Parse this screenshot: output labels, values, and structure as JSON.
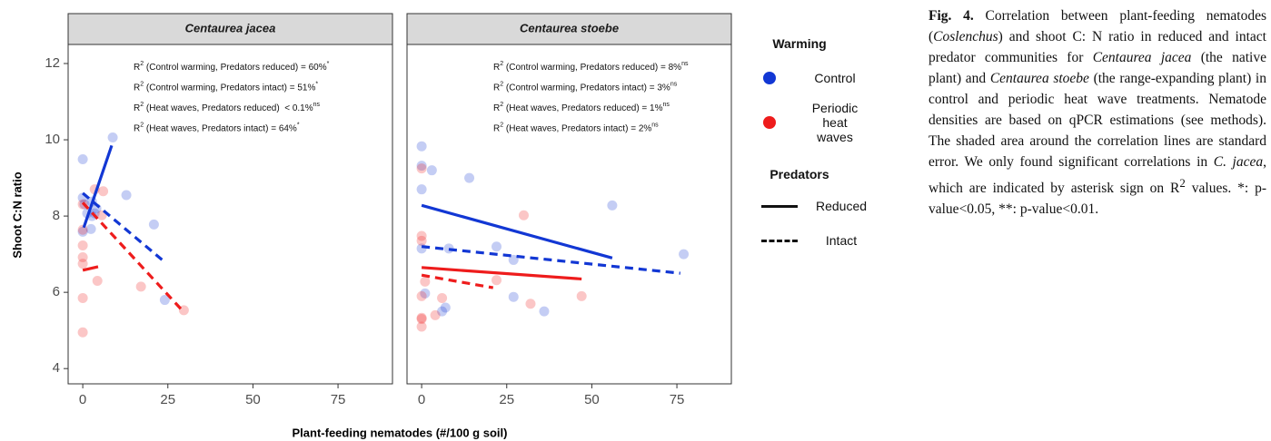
{
  "chart_data": {
    "type": "scatter",
    "ylabel": "Shoot C:N ratio",
    "xlabel": "Plant-feeding nematodes (#/100 g soil)",
    "xlim": [
      -4.3,
      91
    ],
    "xticks": [
      0,
      25,
      50,
      75
    ],
    "ylim": [
      3.6,
      12.5
    ],
    "yticks": [
      4,
      6,
      8,
      10,
      12
    ],
    "grid": false,
    "legend": {
      "title": "Warming",
      "items": [
        {
          "name": "Control",
          "color": "#1237d4"
        },
        {
          "name": "Periodic heat waves",
          "color": "#ee1c1c"
        }
      ]
    },
    "line_legend": {
      "title": "Predators",
      "items": [
        {
          "name": "Reduced",
          "dashed": false
        },
        {
          "name": "Intact",
          "dashed": true
        }
      ]
    },
    "facets": [
      {
        "title": "Centaurea jacea",
        "annotations": [
          {
            "base": "R",
            "sup": "2",
            "text": " (Control warming, Predators reduced) = 60%",
            "sig": "*"
          },
          {
            "base": "R",
            "sup": "2",
            "text": " (Control warming, Predators intact) = 51%",
            "sig": "*"
          },
          {
            "base": "R",
            "sup": "2",
            "text": " (Heat waves, Predators reduced)  < 0.1%",
            "sig": "ns"
          },
          {
            "base": "R",
            "sup": "2",
            "text": " (Heat waves, Predators intact) = 64%",
            "sig": "*"
          }
        ],
        "series": [
          {
            "color": "#1237d4",
            "x": [
              0,
              8.8,
              12.8,
              20.9,
              24.1,
              0,
              0.5,
              1.3,
              2.7,
              3.5,
              2.4,
              0,
              2.7,
              4.0
            ],
            "values": [
              9.49,
              10.06,
              8.55,
              7.78,
              5.8,
              8.48,
              8.31,
              8.07,
              8.0,
              8.07,
              7.66,
              7.59,
              8.38,
              8.2
            ]
          },
          {
            "color": "#ee1c1c",
            "x": [
              0,
              0,
              0,
              0,
              0,
              0,
              0,
              5.6,
              4.3,
              17.1,
              29.7,
              3.5,
              6.0
            ],
            "values": [
              8.31,
              7.64,
              7.23,
              6.92,
              6.75,
              5.85,
              4.95,
              8.02,
              6.3,
              6.15,
              5.53,
              8.7,
              8.65
            ]
          }
        ],
        "lines": [
          {
            "color": "#1237d4",
            "dashed": false,
            "x": [
              0.3,
              8.5
            ],
            "values": [
              7.7,
              9.85
            ]
          },
          {
            "color": "#1237d4",
            "dashed": true,
            "x": [
              0,
              24
            ],
            "values": [
              8.6,
              6.8
            ]
          },
          {
            "color": "#ee1c1c",
            "dashed": false,
            "x": [
              0,
              4.5
            ],
            "values": [
              6.58,
              6.67
            ]
          },
          {
            "color": "#ee1c1c",
            "dashed": true,
            "x": [
              0,
              29.5
            ],
            "values": [
              8.35,
              5.5
            ]
          }
        ]
      },
      {
        "title": "Centaurea stoebe",
        "annotations": [
          {
            "base": "R",
            "sup": "2",
            "text": " (Control warming, Predators reduced) = 8%",
            "sig": "ns"
          },
          {
            "base": "R",
            "sup": "2",
            "text": " (Control warming, Predators intact) = 3%",
            "sig": "ns"
          },
          {
            "base": "R",
            "sup": "2",
            "text": " (Heat waves, Predators reduced) = 1%",
            "sig": "ns"
          },
          {
            "base": "R",
            "sup": "2",
            "text": " (Heat waves, Predators intact) = 2%",
            "sig": "ns"
          }
        ],
        "series": [
          {
            "color": "#1237d4",
            "x": [
              0,
              0,
              3,
              0,
              14,
              56,
              77,
              22,
              8,
              27,
              27,
              36,
              6,
              7,
              1,
              0
            ],
            "values": [
              9.83,
              9.32,
              9.2,
              8.7,
              9.0,
              8.28,
              7.0,
              7.2,
              7.15,
              6.85,
              5.88,
              5.5,
              5.5,
              5.6,
              5.97,
              7.15
            ]
          },
          {
            "color": "#ee1c1c",
            "x": [
              0,
              0,
              0,
              30,
              22,
              47,
              32,
              6,
              4,
              0,
              0,
              0,
              0,
              1
            ],
            "values": [
              9.25,
              7.48,
              7.35,
              8.02,
              6.32,
              5.9,
              5.7,
              5.85,
              5.4,
              5.9,
              5.33,
              5.3,
              5.1,
              6.28
            ]
          }
        ],
        "lines": [
          {
            "color": "#1237d4",
            "dashed": false,
            "x": [
              0,
              56
            ],
            "values": [
              8.28,
              6.9
            ]
          },
          {
            "color": "#1237d4",
            "dashed": true,
            "x": [
              0,
              76
            ],
            "values": [
              7.2,
              6.5
            ]
          },
          {
            "color": "#ee1c1c",
            "dashed": false,
            "x": [
              0,
              47
            ],
            "values": [
              6.65,
              6.35
            ]
          },
          {
            "color": "#ee1c1c",
            "dashed": true,
            "x": [
              0,
              21
            ],
            "values": [
              6.45,
              6.12
            ]
          }
        ]
      }
    ]
  },
  "caption": [
    {
      "text": "Fig. 4.",
      "style": "b"
    },
    {
      "text": " Correlation between plant-feeding nematodes (",
      "style": ""
    },
    {
      "text": "Coslenchus",
      "style": "i"
    },
    {
      "text": ") and shoot C: N ratio in reduced and intact predator communities for ",
      "style": ""
    },
    {
      "text": "Centaurea jacea",
      "style": "i"
    },
    {
      "text": " (the native plant) and ",
      "style": ""
    },
    {
      "text": "Centaurea stoebe",
      "style": "i"
    },
    {
      "text": " (the range-expanding plant) in control and periodic heat wave treatments. Nematode densities are based on qPCR estimations (see methods). The shaded area around the correlation lines are standard error. We only found significant correlations in ",
      "style": ""
    },
    {
      "text": "C. jacea",
      "style": "i"
    },
    {
      "text": ", which are indicated by asterisk sign on R",
      "style": ""
    },
    {
      "text": "2",
      "style": "sup"
    },
    {
      "text": " values. *: p-value<0.05, **: p-value<0.01.",
      "style": ""
    }
  ]
}
